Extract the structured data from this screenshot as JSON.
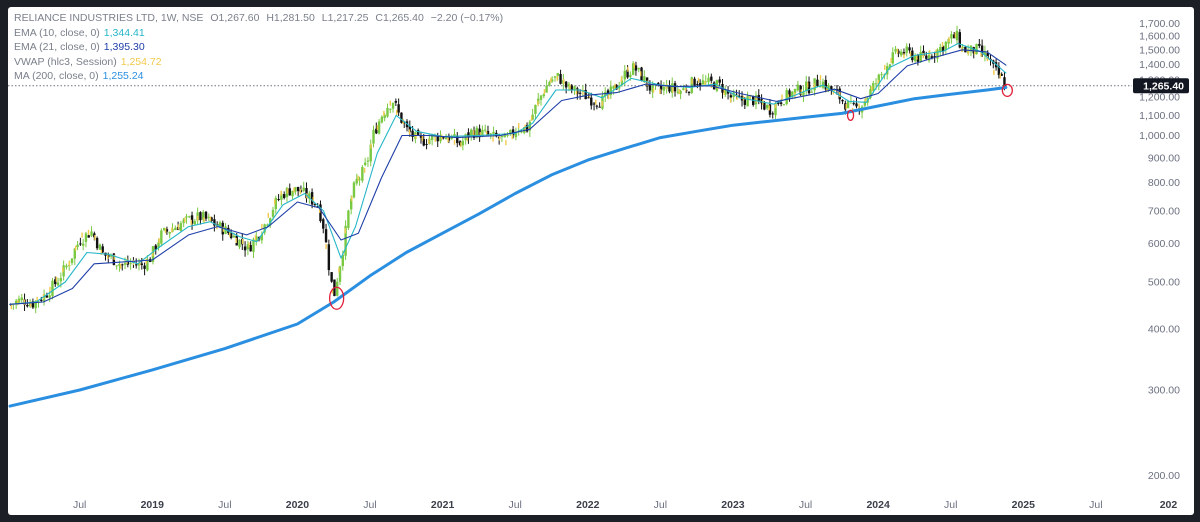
{
  "legend": {
    "symbol": "RELIANCE INDUSTRIES LTD, 1W, NSE",
    "open_key": "O",
    "open": "1,267.60",
    "high_key": "H",
    "high": "1,281.50",
    "low_key": "L",
    "low": "1,217.25",
    "close_key": "C",
    "close": "1,265.40",
    "change": "−2.20 (−0.17%)",
    "indicators": [
      {
        "label": "EMA (10, close, 0)",
        "value": "1,344.41",
        "color": "#26b6c8"
      },
      {
        "label": "EMA (21, close, 0)",
        "value": "1,395.30",
        "color": "#1f3fa8"
      },
      {
        "label": "VWAP (hlc3, Session)",
        "value": "1,254.72",
        "color": "#f2c94c"
      },
      {
        "label": "MA (200, close, 0)",
        "value": "1,255.24",
        "color": "#2a8fe0"
      }
    ]
  },
  "price_tag": "1,265.40",
  "chart_data": {
    "type": "line",
    "y_scale": "log",
    "ylim": [
      180,
      1760
    ],
    "y_ticks": [
      "1,700.00",
      "1,600.00",
      "1,500.00",
      "1,400.00",
      "1,300.00",
      "1,200.00",
      "1,100.00",
      "1,000.00",
      "900.00",
      "800.00",
      "700.00",
      "600.00",
      "500.00",
      "400.00",
      "300.00",
      "200.00"
    ],
    "y_tick_values": [
      1700,
      1600,
      1500,
      1400,
      1300,
      1200,
      1100,
      1000,
      900,
      800,
      700,
      600,
      500,
      400,
      300,
      200
    ],
    "xlim": [
      2018.02,
      2026.1
    ],
    "x_ticks": [
      {
        "label": "Jul",
        "t": 2018.5,
        "bold": false
      },
      {
        "label": "2019",
        "t": 2019.0,
        "bold": true
      },
      {
        "label": "Jul",
        "t": 2019.5,
        "bold": false
      },
      {
        "label": "2020",
        "t": 2020.0,
        "bold": true
      },
      {
        "label": "Jul",
        "t": 2020.5,
        "bold": false
      },
      {
        "label": "2021",
        "t": 2021.0,
        "bold": true
      },
      {
        "label": "Jul",
        "t": 2021.5,
        "bold": false
      },
      {
        "label": "2022",
        "t": 2022.0,
        "bold": true
      },
      {
        "label": "Jul",
        "t": 2022.5,
        "bold": false
      },
      {
        "label": "2023",
        "t": 2023.0,
        "bold": true
      },
      {
        "label": "Jul",
        "t": 2023.5,
        "bold": false
      },
      {
        "label": "2024",
        "t": 2024.0,
        "bold": true
      },
      {
        "label": "Jul",
        "t": 2024.5,
        "bold": false
      },
      {
        "label": "2025",
        "t": 2025.0,
        "bold": true
      },
      {
        "label": "Jul",
        "t": 2025.5,
        "bold": false
      },
      {
        "label": "202",
        "t": 2026.0,
        "bold": true
      }
    ],
    "last_price": 1265.4,
    "price_path": [
      [
        2018.02,
        450
      ],
      [
        2018.1,
        460
      ],
      [
        2018.18,
        452
      ],
      [
        2018.26,
        470
      ],
      [
        2018.34,
        500
      ],
      [
        2018.42,
        545
      ],
      [
        2018.5,
        610
      ],
      [
        2018.58,
        635
      ],
      [
        2018.66,
        570
      ],
      [
        2018.72,
        560
      ],
      [
        2018.8,
        540
      ],
      [
        2018.86,
        548
      ],
      [
        2018.92,
        540
      ],
      [
        2018.98,
        555
      ],
      [
        2019.06,
        625
      ],
      [
        2019.12,
        640
      ],
      [
        2019.2,
        660
      ],
      [
        2019.28,
        675
      ],
      [
        2019.34,
        680
      ],
      [
        2019.42,
        660
      ],
      [
        2019.5,
        640
      ],
      [
        2019.56,
        620
      ],
      [
        2019.62,
        600
      ],
      [
        2019.66,
        585
      ],
      [
        2019.72,
        620
      ],
      [
        2019.78,
        660
      ],
      [
        2019.84,
        720
      ],
      [
        2019.9,
        760
      ],
      [
        2019.96,
        775
      ],
      [
        2020.02,
        770
      ],
      [
        2020.08,
        745
      ],
      [
        2020.14,
        720
      ],
      [
        2020.18,
        650
      ],
      [
        2020.22,
        530
      ],
      [
        2020.25,
        465
      ],
      [
        2020.28,
        520
      ],
      [
        2020.32,
        600
      ],
      [
        2020.36,
        720
      ],
      [
        2020.4,
        800
      ],
      [
        2020.44,
        830
      ],
      [
        2020.48,
        880
      ],
      [
        2020.52,
        1000
      ],
      [
        2020.58,
        1100
      ],
      [
        2020.62,
        1150
      ],
      [
        2020.66,
        1180
      ],
      [
        2020.7,
        1100
      ],
      [
        2020.76,
        1020
      ],
      [
        2020.84,
        970
      ],
      [
        2020.92,
        990
      ],
      [
        2021.0,
        1000
      ],
      [
        2021.06,
        990
      ],
      [
        2021.12,
        960
      ],
      [
        2021.2,
        1020
      ],
      [
        2021.28,
        1010
      ],
      [
        2021.36,
        990
      ],
      [
        2021.44,
        980
      ],
      [
        2021.52,
        1040
      ],
      [
        2021.58,
        1030
      ],
      [
        2021.66,
        1180
      ],
      [
        2021.74,
        1300
      ],
      [
        2021.8,
        1320
      ],
      [
        2021.86,
        1250
      ],
      [
        2021.92,
        1230
      ],
      [
        2021.98,
        1210
      ],
      [
        2022.04,
        1180
      ],
      [
        2022.1,
        1180
      ],
      [
        2022.18,
        1240
      ],
      [
        2022.26,
        1340
      ],
      [
        2022.32,
        1380
      ],
      [
        2022.38,
        1310
      ],
      [
        2022.44,
        1240
      ],
      [
        2022.5,
        1240
      ],
      [
        2022.56,
        1260
      ],
      [
        2022.62,
        1230
      ],
      [
        2022.68,
        1250
      ],
      [
        2022.74,
        1300
      ],
      [
        2022.8,
        1280
      ],
      [
        2022.86,
        1280
      ],
      [
        2022.92,
        1260
      ],
      [
        2022.98,
        1200
      ],
      [
        2023.04,
        1180
      ],
      [
        2023.12,
        1190
      ],
      [
        2023.2,
        1160
      ],
      [
        2023.26,
        1130
      ],
      [
        2023.32,
        1180
      ],
      [
        2023.4,
        1220
      ],
      [
        2023.48,
        1250
      ],
      [
        2023.54,
        1260
      ],
      [
        2023.6,
        1300
      ],
      [
        2023.66,
        1250
      ],
      [
        2023.72,
        1210
      ],
      [
        2023.78,
        1160
      ],
      [
        2023.84,
        1130
      ],
      [
        2023.9,
        1170
      ],
      [
        2023.96,
        1250
      ],
      [
        2024.02,
        1330
      ],
      [
        2024.08,
        1430
      ],
      [
        2024.14,
        1480
      ],
      [
        2024.2,
        1480
      ],
      [
        2024.26,
        1450
      ],
      [
        2024.32,
        1440
      ],
      [
        2024.38,
        1480
      ],
      [
        2024.44,
        1520
      ],
      [
        2024.5,
        1580
      ],
      [
        2024.54,
        1600
      ],
      [
        2024.58,
        1510
      ],
      [
        2024.62,
        1490
      ],
      [
        2024.68,
        1500
      ],
      [
        2024.72,
        1470
      ],
      [
        2024.76,
        1440
      ],
      [
        2024.8,
        1360
      ],
      [
        2024.84,
        1320
      ],
      [
        2024.88,
        1265
      ]
    ],
    "series": [
      {
        "name": "EMA (10, close, 0)",
        "color": "#26b6c8",
        "values": [
          [
            2018.02,
            450
          ],
          [
            2018.2,
            455
          ],
          [
            2018.4,
            500
          ],
          [
            2018.55,
            575
          ],
          [
            2018.7,
            570
          ],
          [
            2018.9,
            545
          ],
          [
            2019.05,
            590
          ],
          [
            2019.25,
            650
          ],
          [
            2019.4,
            665
          ],
          [
            2019.6,
            620
          ],
          [
            2019.72,
            605
          ],
          [
            2019.9,
            720
          ],
          [
            2020.05,
            760
          ],
          [
            2020.18,
            700
          ],
          [
            2020.3,
            560
          ],
          [
            2020.4,
            650
          ],
          [
            2020.55,
            920
          ],
          [
            2020.68,
            1100
          ],
          [
            2020.82,
            1020
          ],
          [
            2021.0,
            995
          ],
          [
            2021.25,
            1000
          ],
          [
            2021.5,
            1010
          ],
          [
            2021.62,
            1060
          ],
          [
            2021.78,
            1240
          ],
          [
            2021.95,
            1240
          ],
          [
            2022.1,
            1195
          ],
          [
            2022.3,
            1310
          ],
          [
            2022.5,
            1270
          ],
          [
            2022.7,
            1255
          ],
          [
            2022.88,
            1275
          ],
          [
            2023.05,
            1195
          ],
          [
            2023.28,
            1160
          ],
          [
            2023.5,
            1235
          ],
          [
            2023.62,
            1270
          ],
          [
            2023.8,
            1175
          ],
          [
            2023.92,
            1170
          ],
          [
            2024.08,
            1380
          ],
          [
            2024.25,
            1460
          ],
          [
            2024.45,
            1490
          ],
          [
            2024.55,
            1545
          ],
          [
            2024.7,
            1490
          ],
          [
            2024.8,
            1410
          ],
          [
            2024.88,
            1344
          ]
        ]
      },
      {
        "name": "EMA (21, close, 0)",
        "color": "#1f3fa8",
        "values": [
          [
            2018.02,
            450
          ],
          [
            2018.25,
            455
          ],
          [
            2018.45,
            485
          ],
          [
            2018.6,
            545
          ],
          [
            2018.8,
            550
          ],
          [
            2019.0,
            555
          ],
          [
            2019.25,
            625
          ],
          [
            2019.45,
            650
          ],
          [
            2019.65,
            625
          ],
          [
            2019.8,
            650
          ],
          [
            2020.0,
            730
          ],
          [
            2020.15,
            710
          ],
          [
            2020.3,
            610
          ],
          [
            2020.42,
            630
          ],
          [
            2020.58,
            820
          ],
          [
            2020.72,
            1000
          ],
          [
            2020.9,
            1000
          ],
          [
            2021.1,
            990
          ],
          [
            2021.4,
            1000
          ],
          [
            2021.6,
            1030
          ],
          [
            2021.82,
            1180
          ],
          [
            2022.0,
            1210
          ],
          [
            2022.2,
            1225
          ],
          [
            2022.4,
            1275
          ],
          [
            2022.6,
            1260
          ],
          [
            2022.85,
            1265
          ],
          [
            2023.05,
            1220
          ],
          [
            2023.3,
            1175
          ],
          [
            2023.55,
            1215
          ],
          [
            2023.7,
            1245
          ],
          [
            2023.88,
            1190
          ],
          [
            2024.0,
            1220
          ],
          [
            2024.2,
            1390
          ],
          [
            2024.4,
            1450
          ],
          [
            2024.58,
            1500
          ],
          [
            2024.75,
            1485
          ],
          [
            2024.88,
            1395
          ]
        ]
      },
      {
        "name": "MA (200, close, 0)",
        "color": "#2a8fe0",
        "values": [
          [
            2018.02,
            278
          ],
          [
            2018.5,
            300
          ],
          [
            2019.0,
            330
          ],
          [
            2019.5,
            365
          ],
          [
            2020.0,
            410
          ],
          [
            2020.25,
            455
          ],
          [
            2020.5,
            515
          ],
          [
            2020.75,
            575
          ],
          [
            2021.0,
            630
          ],
          [
            2021.25,
            690
          ],
          [
            2021.5,
            760
          ],
          [
            2021.75,
            830
          ],
          [
            2022.0,
            890
          ],
          [
            2022.25,
            940
          ],
          [
            2022.5,
            990
          ],
          [
            2022.75,
            1020
          ],
          [
            2023.0,
            1050
          ],
          [
            2023.25,
            1070
          ],
          [
            2023.5,
            1090
          ],
          [
            2023.75,
            1110
          ],
          [
            2024.0,
            1150
          ],
          [
            2024.25,
            1190
          ],
          [
            2024.5,
            1215
          ],
          [
            2024.75,
            1240
          ],
          [
            2024.88,
            1255
          ]
        ]
      }
    ],
    "annotations": [
      {
        "type": "ellipse",
        "t": 2020.27,
        "price": 463,
        "color": "#e0203a"
      },
      {
        "type": "ellipse",
        "t": 2023.81,
        "price": 1100,
        "color": "#e0203a"
      },
      {
        "type": "ellipse",
        "t": 2024.89,
        "price": 1238,
        "color": "#e0203a"
      }
    ]
  }
}
